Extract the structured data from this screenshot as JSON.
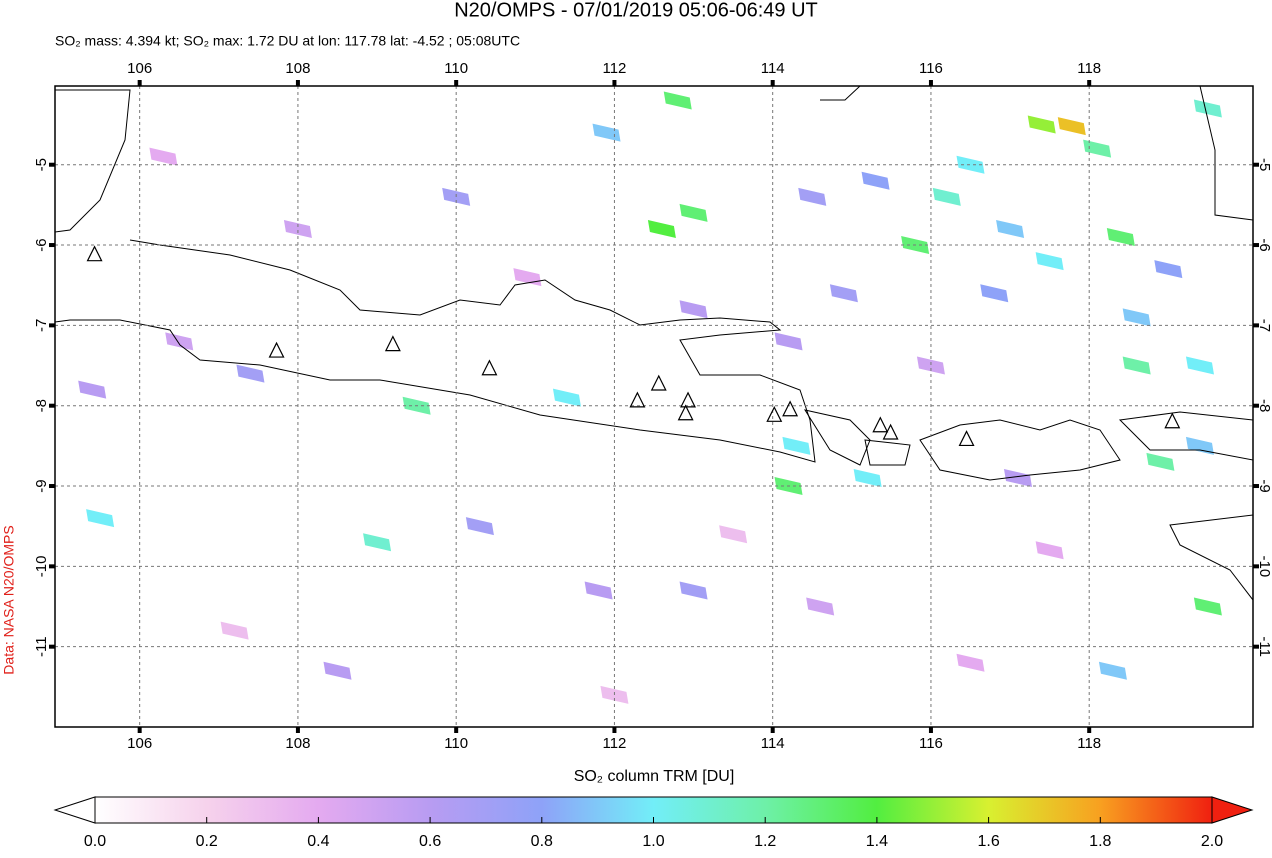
{
  "chart_data": {
    "type": "map",
    "title": "N20/OMPS - 07/01/2019 05:06-06:49 UT",
    "subtitle": "SO₂ mass: 4.394 kt; SO₂ max: 1.72 DU at lon: 117.78 lat: -4.52 ; 05:08UTC",
    "side_label": "Data: NASA N20/OMPS",
    "xlim": [
      104.93,
      120.07
    ],
    "ylim": [
      -12.0,
      -4.02
    ],
    "xticks": [
      106,
      108,
      110,
      112,
      114,
      116,
      118
    ],
    "yticks": [
      -5,
      -6,
      -7,
      -8,
      -9,
      -10,
      -11
    ],
    "grid": true,
    "pixels": {
      "lon": [
        111.9,
        112.8,
        117.4,
        117.78,
        118.1,
        119.5,
        116.5,
        115.3,
        113.0,
        112.6,
        114.5,
        116.2,
        117.0,
        118.4,
        115.8,
        117.5,
        119.0,
        114.9,
        116.8,
        118.6,
        119.4,
        118.6,
        114.2,
        113.0,
        111.4,
        109.5,
        107.4,
        106.5,
        105.4,
        114.3,
        114.2,
        115.2,
        118.9,
        119.4,
        109.0,
        105.5,
        110.3,
        111.8,
        113.0,
        118.3,
        119.5,
        110.0,
        108.0,
        106.3,
        108.5,
        114.6,
        116.5,
        107.2,
        112.0,
        110.9,
        113.5,
        117.5,
        116.0,
        117.1
      ],
      "lat": [
        -4.6,
        -4.2,
        -4.5,
        -4.52,
        -4.8,
        -4.3,
        -5.0,
        -5.2,
        -5.6,
        -5.8,
        -5.4,
        -5.4,
        -5.8,
        -5.9,
        -6.0,
        -6.2,
        -6.3,
        -6.6,
        -6.6,
        -6.9,
        -7.5,
        -7.5,
        -7.2,
        -6.8,
        -7.9,
        -8.0,
        -7.6,
        -7.2,
        -7.8,
        -8.5,
        -9.0,
        -8.9,
        -8.7,
        -8.5,
        -9.7,
        -9.4,
        -9.5,
        -10.3,
        -10.3,
        -11.3,
        -10.5,
        -5.4,
        -5.8,
        -4.9,
        -11.3,
        -10.5,
        -11.2,
        -10.8,
        -11.6,
        -6.4,
        -9.6,
        -9.8,
        -7.5,
        -8.9
      ],
      "values": [
        0.9,
        1.3,
        1.5,
        1.72,
        1.2,
        1.1,
        1.0,
        0.8,
        1.3,
        1.4,
        0.7,
        1.1,
        0.9,
        1.3,
        1.3,
        1.0,
        0.8,
        0.7,
        0.8,
        0.9,
        1.0,
        1.2,
        0.6,
        0.6,
        1.0,
        1.2,
        0.7,
        0.5,
        0.6,
        1.0,
        1.3,
        1.0,
        1.2,
        0.9,
        1.1,
        1.0,
        0.7,
        0.6,
        0.7,
        0.9,
        1.3,
        0.7,
        0.5,
        0.4,
        0.6,
        0.5,
        0.4,
        0.3,
        0.3,
        0.4,
        0.3,
        0.4,
        0.5,
        0.6
      ]
    },
    "volcanoes": {
      "lon": [
        105.43,
        107.73,
        109.2,
        110.42,
        112.29,
        112.56,
        112.93,
        112.9,
        114.02,
        114.22,
        115.36,
        115.49,
        116.45,
        119.05
      ],
      "lat": [
        -6.12,
        -7.32,
        -7.24,
        -7.54,
        -7.94,
        -7.73,
        -7.94,
        -8.1,
        -8.12,
        -8.05,
        -8.25,
        -8.34,
        -8.42,
        -8.2
      ]
    },
    "colorbar": {
      "label": "SO₂ column TRM [DU]",
      "lim": [
        0,
        2
      ],
      "colors": [
        "#ffffff",
        "#f6d2ec",
        "#e4aaf0",
        "#b89cf2",
        "#8ea2f8",
        "#72eef8",
        "#6ef0a8",
        "#52ee40",
        "#d8f030",
        "#f8a020",
        "#f02010"
      ],
      "ticks": [
        {
          "value": 0,
          "label": "0.0"
        },
        {
          "value": 0.2,
          "label": "0.2"
        },
        {
          "value": 0.4,
          "label": "0.4"
        },
        {
          "value": 0.6,
          "label": "0.6"
        },
        {
          "value": 0.8,
          "label": "0.8"
        },
        {
          "value": 1,
          "label": "1.0"
        },
        {
          "value": 1.2,
          "label": "1.2"
        },
        {
          "value": 1.4,
          "label": "1.4"
        },
        {
          "value": 1.6,
          "label": "1.6"
        },
        {
          "value": 1.8,
          "label": "1.8"
        },
        {
          "value": 2,
          "label": "2.0"
        }
      ]
    }
  }
}
